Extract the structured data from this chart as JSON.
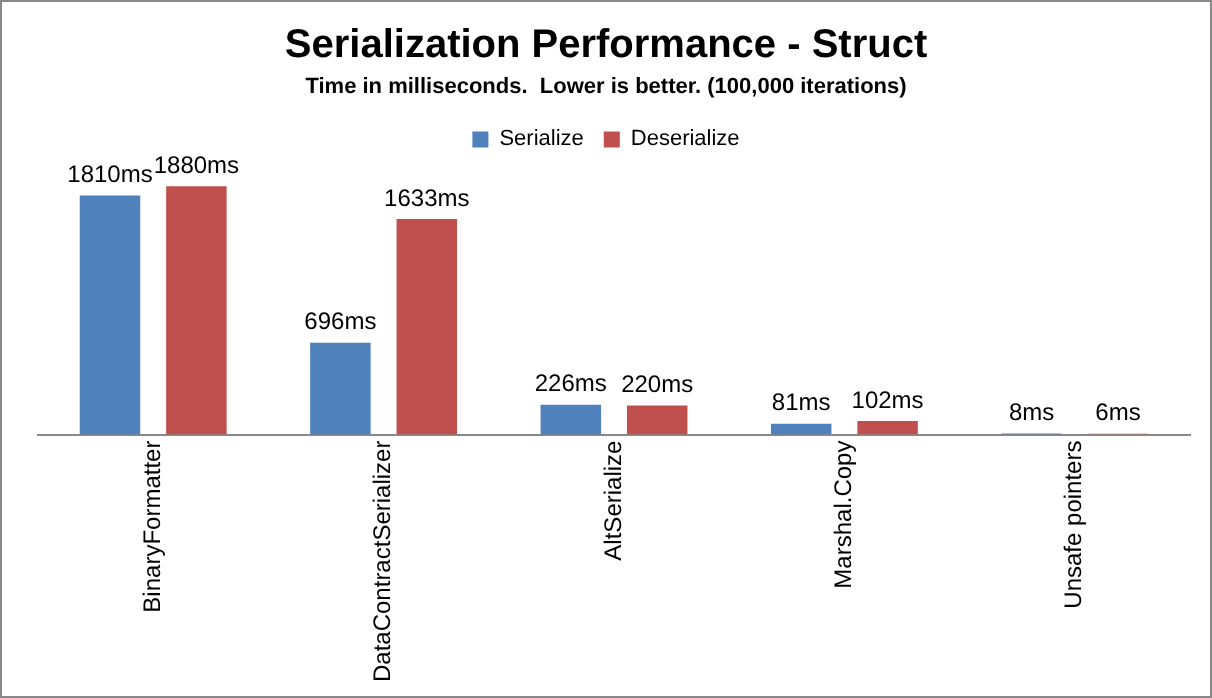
{
  "chart_data": {
    "type": "bar",
    "title": "Serialization Performance - Struct",
    "subtitle": "Time in milliseconds.  Lower is better. (100,000 iterations)",
    "categories": [
      "BinaryFormatter",
      "DataContractSerializer",
      "AltSerialize",
      "Marshal.Copy",
      "Unsafe pointers"
    ],
    "series": [
      {
        "name": "Serialize",
        "color": "#4f81bd",
        "values": [
          1810,
          696,
          226,
          81,
          8
        ],
        "value_labels": [
          "1810ms",
          "696ms",
          "226ms",
          "81ms",
          "8ms"
        ]
      },
      {
        "name": "Deserialize",
        "color": "#c0504d",
        "values": [
          1880,
          1633,
          220,
          102,
          6
        ],
        "value_labels": [
          "1880ms",
          "1633ms",
          "220ms",
          "102ms",
          "6ms"
        ]
      }
    ],
    "legend": "top",
    "grid": false
  }
}
